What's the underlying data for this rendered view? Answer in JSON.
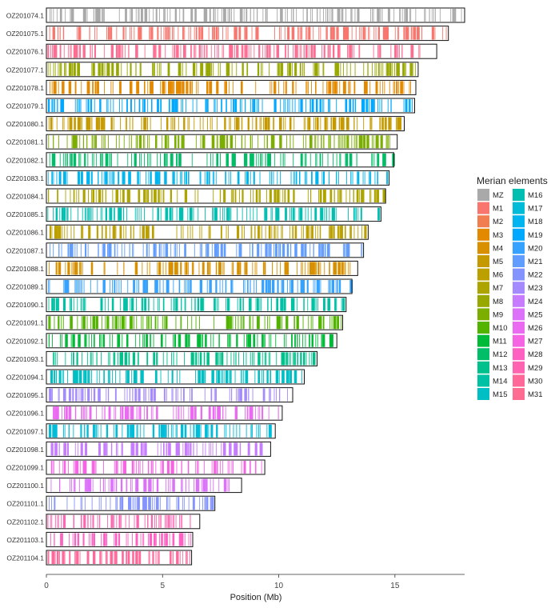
{
  "chart_data": {
    "type": "chromosome-painting",
    "xlabel": "Position (Mb)",
    "x_ticks": [
      0,
      5,
      10,
      15
    ],
    "xlim": [
      0,
      18.0
    ],
    "legend_title": "Merian elements",
    "legend": [
      {
        "label": "MZ",
        "color": "#A9A9A9"
      },
      {
        "label": "M1",
        "color": "#F8766D"
      },
      {
        "label": "M2",
        "color": "#F07E50"
      },
      {
        "label": "M3",
        "color": "#E38900"
      },
      {
        "label": "M4",
        "color": "#D89000"
      },
      {
        "label": "M5",
        "color": "#C49A00"
      },
      {
        "label": "M6",
        "color": "#BBA000"
      },
      {
        "label": "M7",
        "color": "#ADA400"
      },
      {
        "label": "M8",
        "color": "#99A800"
      },
      {
        "label": "M9",
        "color": "#7CAE00"
      },
      {
        "label": "M10",
        "color": "#53B400"
      },
      {
        "label": "M11",
        "color": "#00BA38"
      },
      {
        "label": "M12",
        "color": "#00BE67"
      },
      {
        "label": "M13",
        "color": "#00C08B"
      },
      {
        "label": "M14",
        "color": "#00C1A3"
      },
      {
        "label": "M15",
        "color": "#00BFC4"
      },
      {
        "label": "M16",
        "color": "#00BFB0"
      },
      {
        "label": "M17",
        "color": "#00BCD8"
      },
      {
        "label": "M18",
        "color": "#00B4EF"
      },
      {
        "label": "M19",
        "color": "#00A9FF"
      },
      {
        "label": "M20",
        "color": "#35A2FF"
      },
      {
        "label": "M21",
        "color": "#619CFF"
      },
      {
        "label": "M22",
        "color": "#8494FF"
      },
      {
        "label": "M23",
        "color": "#A58AFF"
      },
      {
        "label": "M24",
        "color": "#C77CFF"
      },
      {
        "label": "M25",
        "color": "#DC71FA"
      },
      {
        "label": "M26",
        "color": "#EA6AF1"
      },
      {
        "label": "M27",
        "color": "#F564E3"
      },
      {
        "label": "M28",
        "color": "#FF61C3"
      },
      {
        "label": "M29",
        "color": "#FF64B0"
      },
      {
        "label": "M30",
        "color": "#FF6899"
      },
      {
        "label": "M31",
        "color": "#FF6C91"
      }
    ],
    "chromosomes": [
      {
        "name": "OZ201074.1",
        "length": 18.0,
        "element": "MZ"
      },
      {
        "name": "OZ201075.1",
        "length": 17.3,
        "element": "M1"
      },
      {
        "name": "OZ201076.1",
        "length": 16.8,
        "element": "M31"
      },
      {
        "name": "OZ201077.1",
        "length": 16.0,
        "element": "M8"
      },
      {
        "name": "OZ201078.1",
        "length": 15.9,
        "element": "M3"
      },
      {
        "name": "OZ201079.1",
        "length": 15.85,
        "element": "M19"
      },
      {
        "name": "OZ201080.1",
        "length": 15.4,
        "element": "M5"
      },
      {
        "name": "OZ201081.1",
        "length": 15.1,
        "element": "M9"
      },
      {
        "name": "OZ201082.1",
        "length": 14.95,
        "element": "M12"
      },
      {
        "name": "OZ201083.1",
        "length": 14.75,
        "element": "M18"
      },
      {
        "name": "OZ201084.1",
        "length": 14.6,
        "element": "M7"
      },
      {
        "name": "OZ201085.1",
        "length": 14.4,
        "element": "M16"
      },
      {
        "name": "OZ201086.1",
        "length": 13.85,
        "element": "M6"
      },
      {
        "name": "OZ201087.1",
        "length": 13.65,
        "element": "M21"
      },
      {
        "name": "OZ201088.1",
        "length": 13.4,
        "element": "M4"
      },
      {
        "name": "OZ201089.1",
        "length": 13.15,
        "element": "M20"
      },
      {
        "name": "OZ201090.1",
        "length": 12.9,
        "element": "M14"
      },
      {
        "name": "OZ201091.1",
        "length": 12.75,
        "element": "M10"
      },
      {
        "name": "OZ201092.1",
        "length": 12.5,
        "element": "M11"
      },
      {
        "name": "OZ201093.1",
        "length": 11.65,
        "element": "M13"
      },
      {
        "name": "OZ201094.1",
        "length": 11.1,
        "element": "M15"
      },
      {
        "name": "OZ201095.1",
        "length": 10.6,
        "element": "M23"
      },
      {
        "name": "OZ201096.1",
        "length": 10.15,
        "element": "M26"
      },
      {
        "name": "OZ201097.1",
        "length": 9.85,
        "element": "M17"
      },
      {
        "name": "OZ201098.1",
        "length": 9.65,
        "element": "M24"
      },
      {
        "name": "OZ201099.1",
        "length": 9.4,
        "element": "M27"
      },
      {
        "name": "OZ201100.1",
        "length": 8.4,
        "element": "M25"
      },
      {
        "name": "OZ201101.1",
        "length": 7.25,
        "element": "M22"
      },
      {
        "name": "OZ201102.1",
        "length": 6.6,
        "element": "M29"
      },
      {
        "name": "OZ201103.1",
        "length": 6.3,
        "element": "M28"
      },
      {
        "name": "OZ201104.1",
        "length": 6.25,
        "element": "M30"
      }
    ]
  }
}
